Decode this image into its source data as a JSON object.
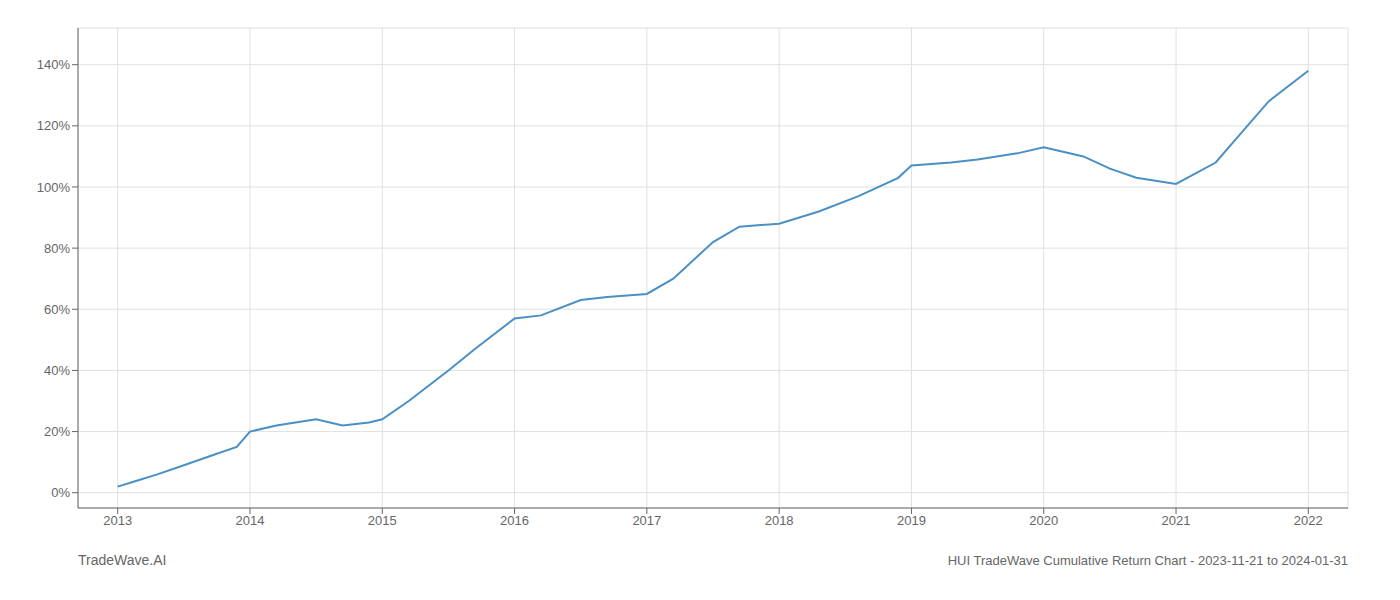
{
  "chart_data": {
    "type": "line",
    "title": "HUI TradeWave Cumulative Return Chart - 2023-11-21 to 2024-01-31",
    "annotations": [
      "TradeWave.AI"
    ],
    "x": [
      2013.0,
      2013.15,
      2013.3,
      2013.5,
      2013.7,
      2013.9,
      2014.0,
      2014.2,
      2014.5,
      2014.7,
      2014.9,
      2015.0,
      2015.2,
      2015.5,
      2015.7,
      2016.0,
      2016.2,
      2016.5,
      2016.7,
      2017.0,
      2017.2,
      2017.5,
      2017.7,
      2018.0,
      2018.3,
      2018.6,
      2018.9,
      2019.0,
      2019.3,
      2019.5,
      2019.8,
      2020.0,
      2020.3,
      2020.5,
      2020.7,
      2021.0,
      2021.3,
      2021.5,
      2021.7,
      2022.0
    ],
    "values": [
      2,
      4,
      6,
      9,
      12,
      15,
      20,
      22,
      24,
      22,
      23,
      24,
      30,
      40,
      47,
      57,
      58,
      63,
      64,
      65,
      70,
      82,
      87,
      88,
      92,
      97,
      103,
      107,
      108,
      109,
      111,
      113,
      110,
      106,
      103,
      101,
      108,
      118,
      128,
      138
    ],
    "color": "#4a90c4",
    "xlim": [
      2012.7,
      2022.3
    ],
    "ylim": [
      -5,
      152
    ],
    "xticks": [
      2013,
      2014,
      2015,
      2016,
      2017,
      2018,
      2019,
      2020,
      2021,
      2022
    ],
    "yticks": [
      {
        "value": 0,
        "label": "0%"
      },
      {
        "value": 20,
        "label": "20%"
      },
      {
        "value": 40,
        "label": "40%"
      },
      {
        "value": 60,
        "label": "60%"
      },
      {
        "value": 80,
        "label": "80%"
      },
      {
        "value": 100,
        "label": "100%"
      },
      {
        "value": 120,
        "label": "120%"
      },
      {
        "value": 140,
        "label": "140%"
      }
    ],
    "grid": true
  }
}
